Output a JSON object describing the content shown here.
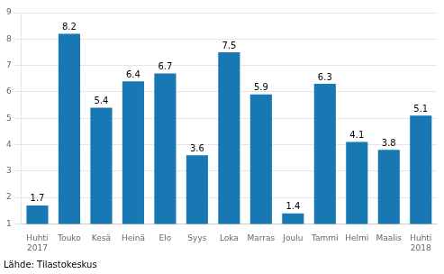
{
  "chart_data": {
    "type": "bar",
    "categories": [
      "Huhti\n2017",
      "Touko",
      "Kesä",
      "Heinä",
      "Elo",
      "Syys",
      "Loka",
      "Marras",
      "Joulu",
      "Tammi",
      "Helmi",
      "Maalis",
      "Huhti\n2018"
    ],
    "values": [
      1.7,
      8.2,
      5.4,
      6.4,
      6.7,
      3.6,
      7.5,
      5.9,
      1.4,
      6.3,
      4.1,
      3.8,
      5.1
    ],
    "color": "#1878b4",
    "ylim": [
      1,
      9
    ],
    "yticks": [
      1,
      2,
      3,
      4,
      5,
      6,
      7,
      8,
      9
    ],
    "grid": true,
    "data_labels": true,
    "footnote": "Lähde: Tilastokeskus"
  }
}
